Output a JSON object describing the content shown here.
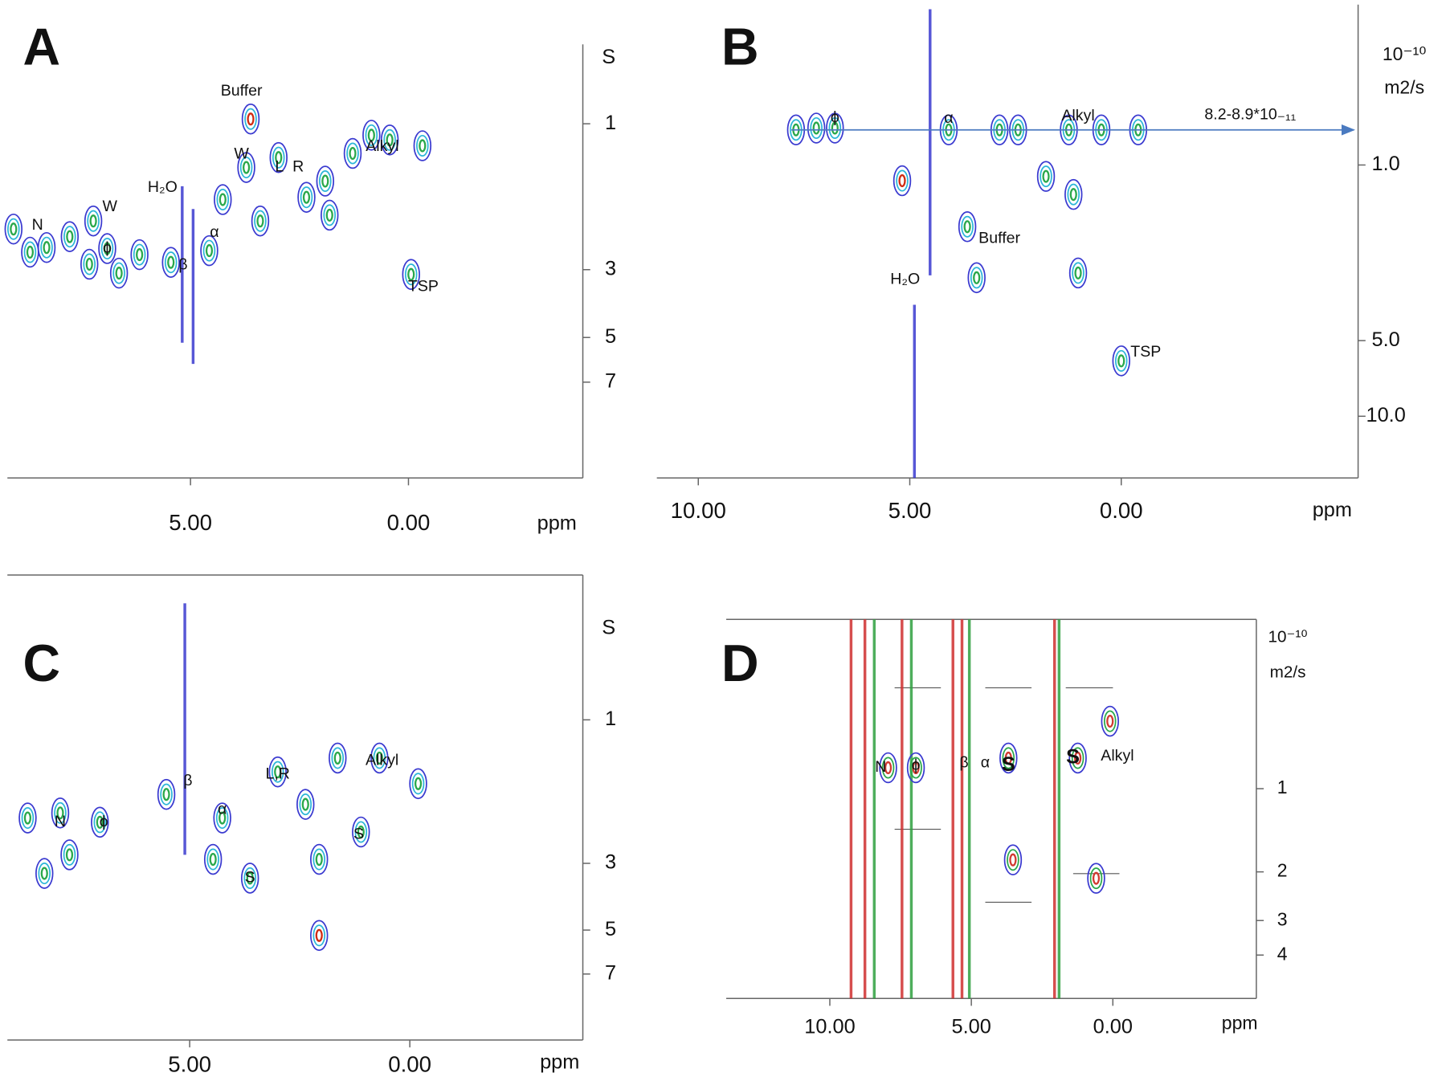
{
  "chart_data": [
    {
      "type": "contour",
      "panel_label": "A",
      "x_label": "ppm",
      "y_label": "S",
      "yscale": "log",
      "xlim": [
        9.2,
        -4.0
      ],
      "xticks": [
        {
          "value": 5,
          "label": "5.00"
        },
        {
          "value": 0,
          "label": "0.00"
        }
      ],
      "ylim": [
        14.4,
        0.55
      ],
      "yticks": [
        1,
        3,
        5,
        7
      ],
      "contour_colors": [
        "#3a3ad0",
        "#2cb6d8",
        "#2aa84a"
      ],
      "peaks": [
        {
          "x": 9.06,
          "y": 2.21
        },
        {
          "x": 8.68,
          "y": 2.63
        },
        {
          "x": 8.3,
          "y": 2.54
        },
        {
          "x": 7.77,
          "y": 2.34
        },
        {
          "x": 7.23,
          "y": 2.08
        },
        {
          "x": 6.91,
          "y": 2.56
        },
        {
          "x": 7.32,
          "y": 2.88
        },
        {
          "x": 6.64,
          "y": 3.08
        },
        {
          "x": 6.17,
          "y": 2.68
        },
        {
          "x": 5.45,
          "y": 2.84
        },
        {
          "x": 4.57,
          "y": 2.6
        },
        {
          "x": 4.26,
          "y": 1.77
        },
        {
          "x": 3.62,
          "y": 0.965,
          "color": "#d02a10"
        },
        {
          "x": 3.72,
          "y": 1.39
        },
        {
          "x": 3.4,
          "y": 2.08
        },
        {
          "x": 2.98,
          "y": 1.29
        },
        {
          "x": 2.34,
          "y": 1.74
        },
        {
          "x": 1.91,
          "y": 1.54
        },
        {
          "x": 1.81,
          "y": 1.99
        },
        {
          "x": 1.28,
          "y": 1.25
        },
        {
          "x": 0.85,
          "y": 1.09
        },
        {
          "x": 0.43,
          "y": 1.13
        },
        {
          "x": -0.32,
          "y": 1.18
        },
        {
          "x": -0.06,
          "y": 3.11
        }
      ],
      "ridges": [
        {
          "x": 5.19,
          "y": [
            1.6,
            5.2
          ],
          "color": "#3a3ad0"
        },
        {
          "x": 4.94,
          "y": [
            1.9,
            6.1
          ],
          "color": "#3a3ad0"
        }
      ],
      "annotations": [
        {
          "text": "Buffer",
          "x": 3.83,
          "y": 0.784
        },
        {
          "text": "W",
          "x": 6.85,
          "y": 1.87
        },
        {
          "text": "W",
          "x": 3.83,
          "y": 1.26
        },
        {
          "text": "H₂O",
          "x": 5.64,
          "y": 1.62
        },
        {
          "text": "N",
          "x": 8.51,
          "y": 2.15
        },
        {
          "text": "ϕ",
          "x": 6.91,
          "y": 2.56
        },
        {
          "text": "β",
          "x": 5.17,
          "y": 2.9
        },
        {
          "text": "α",
          "x": 4.45,
          "y": 2.27
        },
        {
          "text": "L",
          "x": 2.96,
          "y": 1.39
        },
        {
          "text": "R",
          "x": 2.53,
          "y": 1.39
        },
        {
          "text": "Alkyl",
          "x": 0.6,
          "y": 1.19
        },
        {
          "text": "TSP",
          "x": -0.34,
          "y": 3.42
        }
      ]
    },
    {
      "type": "contour",
      "panel_label": "B",
      "x_label": "ppm",
      "y_label": [
        "10⁻¹⁰",
        "m2/s"
      ],
      "yscale": "log",
      "xlim": [
        10.98,
        -5.6
      ],
      "xticks": [
        {
          "value": 10,
          "label": "10.00"
        },
        {
          "value": 5,
          "label": "5.00"
        },
        {
          "value": 0,
          "label": "0.00"
        }
      ],
      "ylim": [
        17.6,
        0.23
      ],
      "yticks": [
        {
          "value": 1,
          "label": "1.0"
        },
        {
          "value": 5,
          "label": "5.0"
        },
        {
          "value": 10,
          "label": "10.0"
        }
      ],
      "contour_colors": [
        "#3a3ad0",
        "#2cb6d8",
        "#2aa84a"
      ],
      "peaks": [
        {
          "x": 7.21,
          "y": 0.713
        },
        {
          "x": 6.77,
          "y": 0.713
        },
        {
          "x": 7.69,
          "y": 0.725
        },
        {
          "x": 5.18,
          "y": 1.155,
          "color": "#d02a10"
        },
        {
          "x": 4.08,
          "y": 0.725
        },
        {
          "x": 3.64,
          "y": 1.76
        },
        {
          "x": 3.42,
          "y": 2.81
        },
        {
          "x": 2.88,
          "y": 0.725
        },
        {
          "x": 2.44,
          "y": 0.725
        },
        {
          "x": 1.78,
          "y": 1.11
        },
        {
          "x": 1.24,
          "y": 0.725
        },
        {
          "x": 1.13,
          "y": 1.31
        },
        {
          "x": 1.02,
          "y": 2.69
        },
        {
          "x": 0.47,
          "y": 0.725
        },
        {
          "x": 0.0,
          "y": 6.02
        },
        {
          "x": -0.4,
          "y": 0.725
        }
      ],
      "ridges": [
        {
          "x": 4.52,
          "y": [
            0.24,
            2.75
          ],
          "color": "#3a3ad0"
        },
        {
          "x": 4.89,
          "y": [
            3.6,
            17.6
          ],
          "color": "#3a3ad0"
        }
      ],
      "arrow": {
        "y": 0.725,
        "x": [
          7.8,
          -5.5
        ]
      },
      "annotations": [
        {
          "text": "ϕ",
          "x": 6.77,
          "y": 0.65
        },
        {
          "text": "α",
          "x": 4.08,
          "y": 0.655
        },
        {
          "text": "Alkyl",
          "x": 1.02,
          "y": 0.64
        },
        {
          "text": "Buffer",
          "x": 2.88,
          "y": 1.97
        },
        {
          "text": "H₂O",
          "x": 5.11,
          "y": 2.86
        },
        {
          "text": "TSP",
          "x": -0.58,
          "y": 5.58
        },
        {
          "text": "8.2-8.9*10₋₁₁",
          "x": -3.05,
          "y": 0.633
        }
      ]
    },
    {
      "type": "contour",
      "panel_label": "C",
      "x_label": "ppm",
      "y_label": "S",
      "yscale": "log",
      "xlim": [
        9.14,
        -3.93
      ],
      "xticks": [
        {
          "value": 5,
          "label": "5.00"
        },
        {
          "value": 0,
          "label": "0.00"
        }
      ],
      "ylim": [
        11.6,
        0.33
      ],
      "yticks": [
        1,
        3,
        5,
        7
      ],
      "contour_colors": [
        "#3a3ad0",
        "#2cb6d8",
        "#2aa84a"
      ],
      "peaks": [
        {
          "x": 8.68,
          "y": 2.12
        },
        {
          "x": 7.94,
          "y": 2.04
        },
        {
          "x": 8.3,
          "y": 3.24
        },
        {
          "x": 7.73,
          "y": 2.81
        },
        {
          "x": 7.04,
          "y": 2.19
        },
        {
          "x": 5.53,
          "y": 1.77
        },
        {
          "x": 4.26,
          "y": 2.12
        },
        {
          "x": 4.47,
          "y": 2.91
        },
        {
          "x": 3.63,
          "y": 3.36
        },
        {
          "x": 3.0,
          "y": 1.49
        },
        {
          "x": 2.37,
          "y": 1.91
        },
        {
          "x": 2.06,
          "y": 2.91
        },
        {
          "x": 2.06,
          "y": 5.21,
          "color": "#d02a10"
        },
        {
          "x": 1.64,
          "y": 1.34
        },
        {
          "x": 1.11,
          "y": 2.36
        },
        {
          "x": 0.69,
          "y": 1.34
        },
        {
          "x": -0.19,
          "y": 1.63
        }
      ],
      "ridges": [
        {
          "x": 5.11,
          "y": [
            0.41,
            2.81
          ],
          "color": "#3a3ad0"
        }
      ],
      "annotations": [
        {
          "text": "β",
          "x": 5.04,
          "y": 1.6
        },
        {
          "text": "N",
          "x": 7.94,
          "y": 2.19
        },
        {
          "text": "ϕ",
          "x": 6.95,
          "y": 2.19
        },
        {
          "text": "α",
          "x": 4.26,
          "y": 1.99
        },
        {
          "text": "S",
          "x": 3.63,
          "y": 3.36
        },
        {
          "text": "L,R",
          "x": 3.0,
          "y": 1.52
        },
        {
          "text": "Alkyl",
          "x": 0.63,
          "y": 1.37
        },
        {
          "text": "S",
          "x": 1.16,
          "y": 2.41
        }
      ]
    },
    {
      "type": "contour",
      "panel_label": "D",
      "x_label": "ppm",
      "y_label": [
        "10⁻¹⁰",
        "m2/s"
      ],
      "yscale": "log",
      "xlim": [
        13.66,
        -5.07
      ],
      "xticks": [
        {
          "value": 10,
          "label": "10.00"
        },
        {
          "value": 5,
          "label": "5.00"
        },
        {
          "value": 0,
          "label": "0.00"
        }
      ],
      "ylim": [
        5.74,
        0.244
      ],
      "yticks": [
        1,
        2,
        3,
        4
      ],
      "contour_colors": [
        "#3a3ad0",
        "#2aa84a",
        "#d03a30"
      ],
      "peaks": [
        {
          "x": 6.96,
          "y": 0.84
        },
        {
          "x": 7.94,
          "y": 0.84
        },
        {
          "x": 3.69,
          "y": 0.775
        },
        {
          "x": 1.24,
          "y": 0.775
        },
        {
          "x": 0.1,
          "y": 0.57
        },
        {
          "x": 0.59,
          "y": 2.11
        },
        {
          "x": 3.53,
          "y": 1.81
        }
      ],
      "ridges": [
        {
          "x": 9.25,
          "y": [
            5.74,
            0.244
          ],
          "color": "#d03030"
        },
        {
          "x": 8.76,
          "y": [
            5.74,
            0.244
          ],
          "color": "#d03030"
        },
        {
          "x": 8.43,
          "y": [
            5.74,
            0.244
          ],
          "color": "#30a040"
        },
        {
          "x": 7.45,
          "y": [
            5.74,
            0.244
          ],
          "color": "#d03030"
        },
        {
          "x": 7.12,
          "y": [
            5.74,
            0.244
          ],
          "color": "#30a040"
        },
        {
          "x": 5.65,
          "y": [
            5.74,
            0.244
          ],
          "color": "#d03030"
        },
        {
          "x": 5.33,
          "y": [
            5.74,
            0.244
          ],
          "color": "#d03030"
        },
        {
          "x": 5.07,
          "y": [
            5.74,
            0.244
          ],
          "color": "#30a040"
        },
        {
          "x": 2.06,
          "y": [
            5.74,
            0.244
          ],
          "color": "#d03030"
        },
        {
          "x": 1.9,
          "y": [
            5.74,
            0.244
          ],
          "color": "#30a040"
        }
      ],
      "annotations": [
        {
          "text": "N",
          "x": 8.2,
          "y": 0.84
        },
        {
          "text": "ϕ",
          "x": 6.96,
          "y": 0.825
        },
        {
          "text": "β",
          "x": 5.26,
          "y": 0.81
        },
        {
          "text": "α",
          "x": 4.51,
          "y": 0.81
        },
        {
          "text": "S",
          "x": 3.69,
          "y": 0.825,
          "bold": true
        },
        {
          "text": "S",
          "x": 1.41,
          "y": 0.775,
          "bold": true
        },
        {
          "text": "Alkyl",
          "x": -0.16,
          "y": 0.764
        }
      ]
    }
  ]
}
